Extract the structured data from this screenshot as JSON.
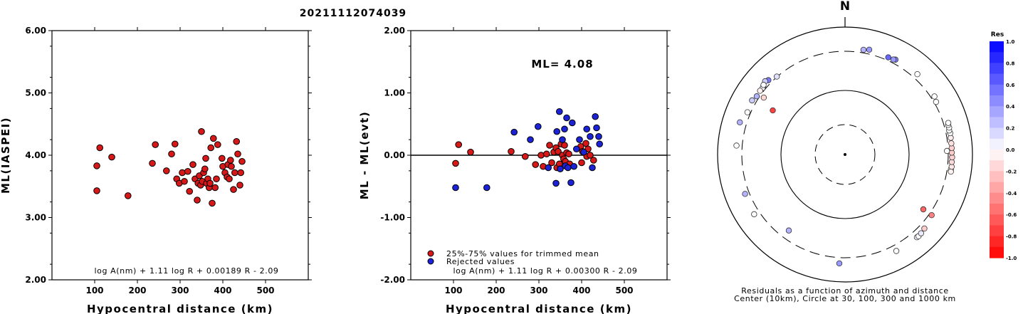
{
  "title": "20211112074039",
  "chart_data": [
    {
      "type": "scatter",
      "title": "",
      "xlabel": "Hypocentral distance (km)",
      "ylabel": "ML(IASPEI)",
      "xlim": [
        0,
        600
      ],
      "ylim": [
        2.0,
        6.0
      ],
      "x_ticks": [
        "100",
        "200",
        "300",
        "400",
        "500"
      ],
      "y_ticks": [
        "2.00",
        "3.00",
        "4.00",
        "5.00",
        "6.00"
      ],
      "formula": "log A(nm) + 1.11 log R + 0.00189 R - 2.09",
      "series": [
        {
          "color": "#d81818",
          "points": [
            [
              105,
              3.83
            ],
            [
              105,
              3.43
            ],
            [
              112,
              4.12
            ],
            [
              140,
              3.97
            ],
            [
              178,
              3.35
            ],
            [
              235,
              3.87
            ],
            [
              242,
              4.17
            ],
            [
              268,
              3.75
            ],
            [
              280,
              4.02
            ],
            [
              288,
              4.18
            ],
            [
              292,
              3.62
            ],
            [
              298,
              3.55
            ],
            [
              305,
              3.72
            ],
            [
              310,
              3.58
            ],
            [
              318,
              3.74
            ],
            [
              322,
              3.42
            ],
            [
              330,
              3.85
            ],
            [
              335,
              3.62
            ],
            [
              340,
              3.28
            ],
            [
              342,
              3.55
            ],
            [
              345,
              3.67
            ],
            [
              348,
              3.52
            ],
            [
              350,
              4.38
            ],
            [
              352,
              3.58
            ],
            [
              355,
              3.72
            ],
            [
              358,
              3.78
            ],
            [
              360,
              3.95
            ],
            [
              362,
              3.55
            ],
            [
              365,
              3.62
            ],
            [
              368,
              3.48
            ],
            [
              370,
              3.55
            ],
            [
              372,
              4.12
            ],
            [
              375,
              3.23
            ],
            [
              378,
              4.27
            ],
            [
              382,
              3.48
            ],
            [
              385,
              3.62
            ],
            [
              388,
              4.17
            ],
            [
              398,
              3.95
            ],
            [
              400,
              3.82
            ],
            [
              405,
              3.72
            ],
            [
              410,
              3.65
            ],
            [
              412,
              3.85
            ],
            [
              415,
              3.62
            ],
            [
              418,
              3.92
            ],
            [
              420,
              3.82
            ],
            [
              425,
              3.45
            ],
            [
              428,
              3.72
            ],
            [
              432,
              4.22
            ],
            [
              435,
              4.02
            ],
            [
              440,
              3.52
            ],
            [
              442,
              3.72
            ],
            [
              445,
              3.9
            ]
          ]
        }
      ]
    },
    {
      "type": "scatter",
      "title": "",
      "xlabel": "Hypocentral distance (km)",
      "ylabel": "ML - ML(evt)",
      "xlim": [
        0,
        600
      ],
      "ylim": [
        -2.0,
        2.0
      ],
      "x_ticks": [
        "100",
        "200",
        "300",
        "400",
        "500"
      ],
      "y_ticks": [
        "-2.00",
        "-1.00",
        "0.00",
        "1.00",
        "2.00"
      ],
      "annotation": "ML= 4.08",
      "formula": "log A(nm) + 1.11 log R + 0.00300 R - 2.09",
      "legend": [
        "25%-75% values for trimmed mean",
        "Rejected values"
      ],
      "legend_position": "bottom-left",
      "series": [
        {
          "name": "25%-75% values for trimmed mean",
          "color": "#d81818",
          "points": [
            [
              105,
              -0.13
            ],
            [
              112,
              0.17
            ],
            [
              140,
              0.05
            ],
            [
              235,
              0.06
            ],
            [
              268,
              -0.02
            ],
            [
              292,
              -0.15
            ],
            [
              305,
              0.0
            ],
            [
              310,
              -0.18
            ],
            [
              318,
              0.02
            ],
            [
              325,
              0.16
            ],
            [
              330,
              -0.12
            ],
            [
              335,
              0.05
            ],
            [
              340,
              0.12
            ],
            [
              342,
              -0.2
            ],
            [
              345,
              0.06
            ],
            [
              348,
              -0.14
            ],
            [
              352,
              0.18
            ],
            [
              355,
              0.0
            ],
            [
              358,
              -0.06
            ],
            [
              360,
              0.16
            ],
            [
              362,
              -0.1
            ],
            [
              365,
              0.04
            ],
            [
              368,
              -0.18
            ],
            [
              370,
              0.02
            ],
            [
              372,
              -0.14
            ],
            [
              398,
              0.14
            ],
            [
              400,
              -0.12
            ],
            [
              402,
              0.06
            ],
            [
              410,
              0.19
            ],
            [
              412,
              -0.02
            ],
            [
              415,
              0.1
            ],
            [
              420,
              0.0
            ],
            [
              428,
              -0.08
            ]
          ]
        },
        {
          "name": "Rejected values",
          "color": "#1c22d8",
          "points": [
            [
              105,
              -0.52
            ],
            [
              178,
              -0.52
            ],
            [
              242,
              0.37
            ],
            [
              280,
              0.25
            ],
            [
              298,
              0.46
            ],
            [
              322,
              -0.2
            ],
            [
              340,
              -0.45
            ],
            [
              342,
              0.38
            ],
            [
              348,
              0.7
            ],
            [
              350,
              -0.22
            ],
            [
              355,
              0.25
            ],
            [
              360,
              0.42
            ],
            [
              362,
              -0.17
            ],
            [
              365,
              0.6
            ],
            [
              368,
              -0.2
            ],
            [
              375,
              -0.44
            ],
            [
              378,
              0.52
            ],
            [
              382,
              -0.18
            ],
            [
              388,
              0.1
            ],
            [
              395,
              0.25
            ],
            [
              405,
              0.05
            ],
            [
              412,
              0.42
            ],
            [
              420,
              0.3
            ],
            [
              425,
              -0.2
            ],
            [
              432,
              0.62
            ],
            [
              435,
              0.44
            ],
            [
              440,
              0.3
            ],
            [
              442,
              0.18
            ]
          ]
        }
      ]
    },
    {
      "type": "scatter",
      "title": "Residuals as a function of azimuth and distance",
      "subtitle": "Center (10km), Circle at 30, 100, 300 and 1000 km",
      "north_label": "N",
      "circles_km": [
        30,
        100,
        300,
        1000
      ],
      "colorbar_label": "Res",
      "colorbar_ticks": [
        "1.0",
        "0.8",
        "0.6",
        "0.4",
        "0.2",
        "0.0",
        "-0.2",
        "-0.4",
        "-0.6",
        "-0.8",
        "-1.0"
      ],
      "colors": {
        "positive": "#0000ff",
        "zero": "#ffffff",
        "negative": "#ff0000"
      },
      "stations": [
        {
          "az": -45.9,
          "dist_km": 358,
          "res": 0.52
        },
        {
          "az": -47.5,
          "dist_km": 388,
          "res": 0.2
        },
        {
          "az": -50.1,
          "dist_km": 352,
          "res": 0.12
        },
        {
          "az": -51.2,
          "dist_km": 342,
          "res": 0.05
        },
        {
          "az": -49.5,
          "dist_km": 365,
          "res": 0.0
        },
        {
          "az": -53.1,
          "dist_km": 348,
          "res": -0.06
        },
        {
          "az": -56.6,
          "dist_km": 340,
          "res": 0.3
        },
        {
          "az": -59.8,
          "dist_km": 372,
          "res": 0.2
        },
        {
          "az": -66.6,
          "dist_km": 350,
          "res": 0.0
        },
        {
          "az": -41.2,
          "dist_km": 305,
          "res": 0.12
        },
        {
          "az": -55.0,
          "dist_km": 268,
          "res": -0.16
        },
        {
          "az": -58.6,
          "dist_km": 178,
          "res": -0.75
        },
        {
          "az": -73.0,
          "dist_km": 420,
          "res": 0.3
        },
        {
          "az": -85.3,
          "dist_km": 398,
          "res": 0.0
        },
        {
          "az": -111.5,
          "dist_km": 370,
          "res": 0.3
        },
        {
          "az": -123.3,
          "dist_km": 395,
          "res": 0.0
        },
        {
          "az": -143.5,
          "dist_km": 235,
          "res": 0.3
        },
        {
          "az": -177.0,
          "dist_km": 400,
          "res": 0.4
        },
        {
          "az": 152.0,
          "dist_km": 405,
          "res": 0.0
        },
        {
          "az": 139.0,
          "dist_km": 412,
          "res": 0.06
        },
        {
          "az": 138.0,
          "dist_km": 418,
          "res": 0.0
        },
        {
          "az": 136.0,
          "dist_km": 410,
          "res": 0.08
        },
        {
          "az": 133.0,
          "dist_km": 390,
          "res": -0.2
        },
        {
          "az": 125.0,
          "dist_km": 340,
          "res": -0.5
        },
        {
          "az": 125.0,
          "dist_km": 242,
          "res": -0.6
        },
        {
          "az": 98.0,
          "dist_km": 360,
          "res": 0.0
        },
        {
          "az": 99.2,
          "dist_km": 366,
          "res": -0.05
        },
        {
          "az": 96.5,
          "dist_km": 368,
          "res": -0.1
        },
        {
          "az": 94.0,
          "dist_km": 362,
          "res": -0.15
        },
        {
          "az": 91.5,
          "dist_km": 364,
          "res": -0.18
        },
        {
          "az": 89.0,
          "dist_km": 358,
          "res": -0.2
        },
        {
          "az": 86.5,
          "dist_km": 360,
          "res": -0.18
        },
        {
          "az": 84.0,
          "dist_km": 360,
          "res": -0.12
        },
        {
          "az": 81.0,
          "dist_km": 362,
          "res": -0.06
        },
        {
          "az": 78.5,
          "dist_km": 368,
          "res": 0.0
        },
        {
          "az": 77.0,
          "dist_km": 360,
          "res": 0.0
        },
        {
          "az": 75.5,
          "dist_km": 372,
          "res": 0.0
        },
        {
          "az": 74.0,
          "dist_km": 368,
          "res": 0.0
        },
        {
          "az": 73.0,
          "dist_km": 380,
          "res": 0.0
        },
        {
          "az": 88.0,
          "dist_km": 290,
          "res": 0.0
        },
        {
          "az": 60.0,
          "dist_km": 330,
          "res": 0.0
        },
        {
          "az": 57.0,
          "dist_km": 355,
          "res": 0.0
        },
        {
          "az": 42.0,
          "dist_km": 382,
          "res": 0.0
        },
        {
          "az": 28.0,
          "dist_km": 370,
          "res": 0.5
        },
        {
          "az": 27.0,
          "dist_km": 355,
          "res": 0.4
        },
        {
          "az": 24.0,
          "dist_km": 350,
          "res": 0.6
        },
        {
          "az": 13.0,
          "dist_km": 372,
          "res": 0.4
        },
        {
          "az": 10.0,
          "dist_km": 350,
          "res": 0.3
        }
      ]
    }
  ]
}
